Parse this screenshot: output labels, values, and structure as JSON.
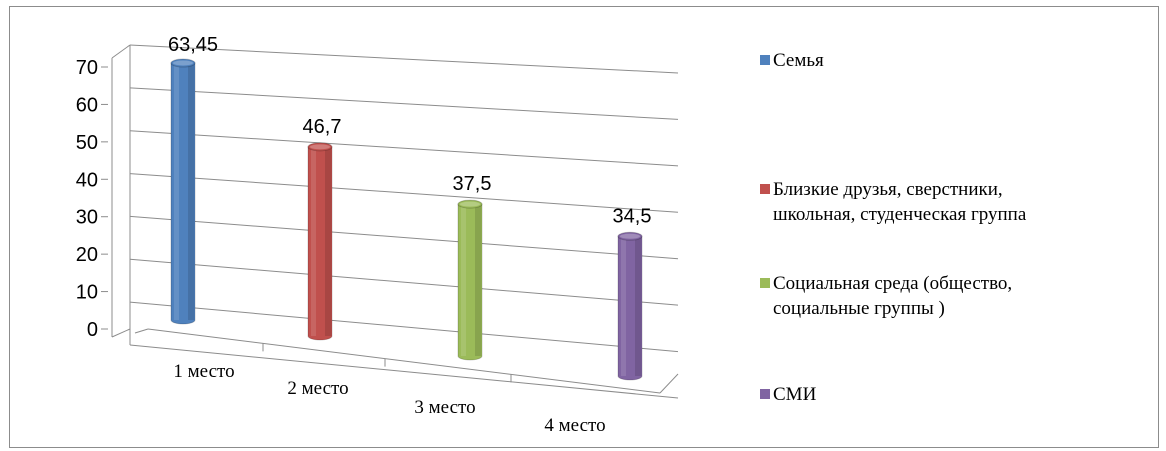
{
  "chart_data": {
    "type": "bar",
    "subtype": "3d-cylinder",
    "categories": [
      "1 место",
      "2 место",
      "3 место",
      "4 место"
    ],
    "series": [
      {
        "name": "Семья",
        "color": "#4f81bd",
        "values": [
          63.45,
          null,
          null,
          null
        ]
      },
      {
        "name": "Близкие друзья, сверстники, школьная, студенческая группа",
        "color": "#c0504d",
        "values": [
          null,
          46.7,
          null,
          null
        ]
      },
      {
        "name": "Социальная среда (общество, социальные группы )",
        "color": "#9bbb59",
        "values": [
          null,
          null,
          37.5,
          null
        ]
      },
      {
        "name": "СМИ",
        "color": "#8064a2",
        "values": [
          null,
          null,
          null,
          34.5
        ]
      }
    ],
    "data_labels": [
      "63,45",
      "46,7",
      "37,5",
      "34,5"
    ],
    "yticks": [
      "0",
      "10",
      "20",
      "30",
      "40",
      "50",
      "60",
      "70"
    ],
    "ylim": [
      0,
      70
    ],
    "grid": true,
    "legend_position": "right"
  },
  "legend": {
    "items": [
      {
        "label": "Семья",
        "color": "#4f81bd"
      },
      {
        "label_lines": [
          "Близкие друзья, сверстники,",
          "школьная, студенческая группа"
        ],
        "color": "#c0504d"
      },
      {
        "label_lines": [
          "Социальная среда (общество,",
          "социальные группы )"
        ],
        "color": "#9bbb59"
      },
      {
        "label": "СМИ",
        "color": "#8064a2"
      }
    ]
  }
}
